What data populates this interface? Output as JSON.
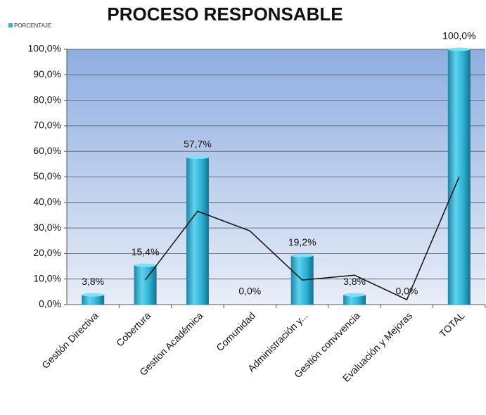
{
  "chart_data": {
    "type": "bar",
    "title": "PROCESO RESPONSABLE",
    "legend": "PORCENTAJE",
    "legend_position": "top-left",
    "categories": [
      "Gestión Directiva",
      "Cobertura",
      "Gestion Académica",
      "Comunidad",
      "Administración y...",
      "Gestión convivencia",
      "Evaluación y Mejoras",
      "TOTAL"
    ],
    "values": [
      3.8,
      15.4,
      57.7,
      0,
      19.2,
      3.8,
      0,
      100
    ],
    "value_labels": [
      "3,8%",
      "15,4%",
      "57,7%",
      "0,0%",
      "19,2%",
      "3,8%",
      "0,0%",
      "100,0%"
    ],
    "color": "#2fb4d6",
    "trendline": {
      "values": [
        null,
        9.6,
        36.55,
        28.85,
        9.6,
        11.5,
        1.9,
        50
      ],
      "color": "#111111"
    },
    "ylim": [
      0,
      100
    ],
    "yticks": [
      {
        "value": 0,
        "label": "0,0%"
      },
      {
        "value": 10,
        "label": "10,0%"
      },
      {
        "value": 20,
        "label": "20,0%"
      },
      {
        "value": 30,
        "label": "30,0%"
      },
      {
        "value": 40,
        "label": "40,0%"
      },
      {
        "value": 50,
        "label": "50,0%"
      },
      {
        "value": 60,
        "label": "60,0%"
      },
      {
        "value": 70,
        "label": "70,0%"
      },
      {
        "value": 80,
        "label": "80,0%"
      },
      {
        "value": 90,
        "label": "90,0%"
      },
      {
        "value": 100,
        "label": "100,0%"
      }
    ],
    "grid": true
  }
}
